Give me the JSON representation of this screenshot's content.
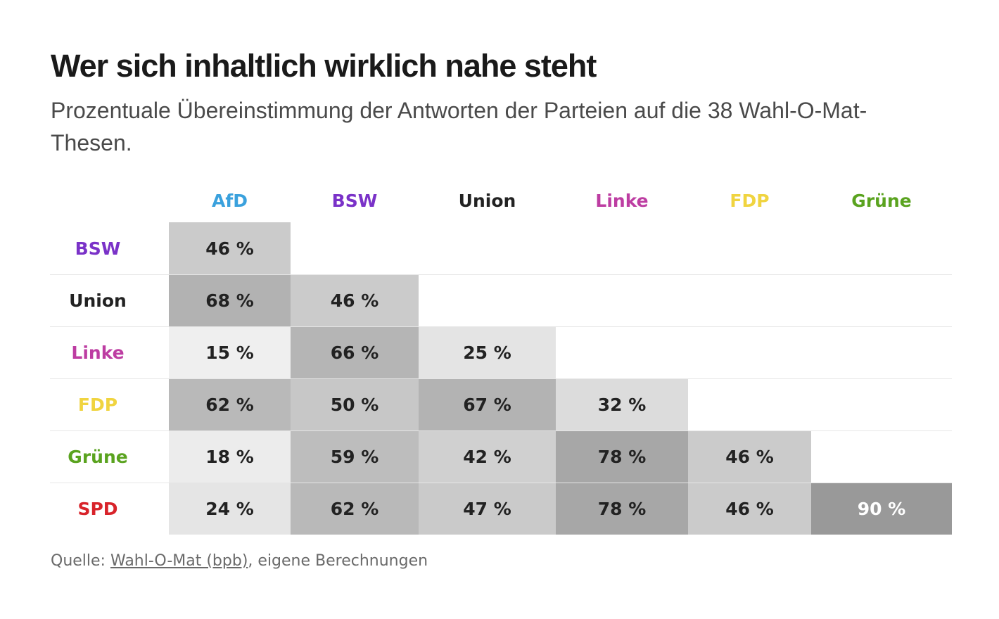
{
  "header": {
    "title": "Wer sich inhaltlich wirklich nahe steht",
    "subtitle": "Prozentuale Übereinstimmung der Antworten der Parteien auf die 38 Wahl-O-Mat-Thesen."
  },
  "chart_data": {
    "type": "heatmap",
    "unit": "%",
    "columns": [
      {
        "name": "AfD",
        "color": "#3aa1dd"
      },
      {
        "name": "BSW",
        "color": "#7a32c8"
      },
      {
        "name": "Union",
        "color": "#222222"
      },
      {
        "name": "Linke",
        "color": "#bd3da2"
      },
      {
        "name": "FDP",
        "color": "#f0d440"
      },
      {
        "name": "Grüne",
        "color": "#5aa31f"
      }
    ],
    "rows": [
      {
        "name": "BSW",
        "color": "#7a32c8",
        "values": [
          46
        ]
      },
      {
        "name": "Union",
        "color": "#222222",
        "values": [
          68,
          46
        ]
      },
      {
        "name": "Linke",
        "color": "#bd3da2",
        "values": [
          15,
          66,
          25
        ]
      },
      {
        "name": "FDP",
        "color": "#f0d440",
        "values": [
          62,
          50,
          67,
          32
        ]
      },
      {
        "name": "Grüne",
        "color": "#5aa31f",
        "values": [
          18,
          59,
          42,
          78,
          46
        ]
      },
      {
        "name": "SPD",
        "color": "#d8232a",
        "values": [
          24,
          62,
          47,
          78,
          46,
          90
        ]
      }
    ],
    "color_scale": {
      "low": "#efefef",
      "high": "#999999",
      "label_dark": "#222222",
      "label_light": "#ffffff"
    }
  },
  "source": {
    "prefix": "Quelle: ",
    "link_text": "Wahl-O-Mat (bpb)",
    "suffix": ", eigene Berechnungen"
  }
}
